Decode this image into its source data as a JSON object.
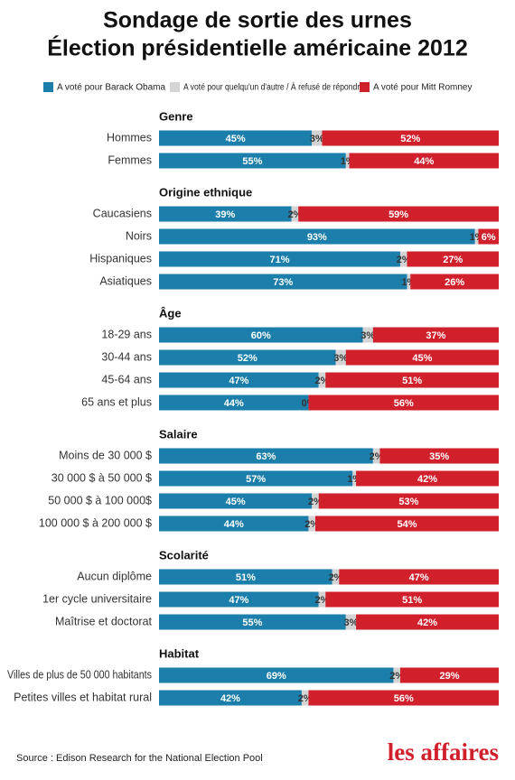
{
  "chart_data": {
    "type": "stacked-bar",
    "title": "Sondage de sortie des urnes",
    "subtitle": "Élection présidentielle américaine 2012",
    "series": [
      {
        "name": "A voté pour Barack Obama",
        "color": "#1b7eab"
      },
      {
        "name": "A voté pour quelqu'un d'autre / À refusé de répondre",
        "color": "#d4d4d4"
      },
      {
        "name": "A voté pour Mitt Romney",
        "color": "#d0202c"
      }
    ],
    "xlim": [
      0,
      100
    ],
    "groups": [
      {
        "name": "Genre",
        "categories": [
          "Hommes",
          "Femmes"
        ],
        "values": [
          [
            45,
            3,
            52
          ],
          [
            55,
            1,
            44
          ]
        ],
        "value_labels": [
          [
            "45%",
            "3%",
            "52%"
          ],
          [
            "55%",
            "1%",
            "44%"
          ]
        ]
      },
      {
        "name": "Origine ethnique",
        "categories": [
          "Caucasiens",
          "Noirs",
          "Hispaniques",
          "Asiatiques"
        ],
        "values": [
          [
            39,
            2,
            59
          ],
          [
            93,
            1,
            6
          ],
          [
            71,
            2,
            27
          ],
          [
            73,
            1,
            26
          ]
        ],
        "value_labels": [
          [
            "39%",
            "2%",
            "59%"
          ],
          [
            "93%",
            "1%",
            "6%"
          ],
          [
            "71%",
            "2%",
            "27%"
          ],
          [
            "73%",
            "1%",
            "26%"
          ]
        ]
      },
      {
        "name": "Âge",
        "categories": [
          "18-29 ans",
          "30-44 ans",
          "45-64 ans",
          "65 ans et plus"
        ],
        "values": [
          [
            60,
            3,
            37
          ],
          [
            52,
            3,
            45
          ],
          [
            47,
            2,
            51
          ],
          [
            44,
            0,
            56
          ]
        ],
        "value_labels": [
          [
            "60%",
            "3%",
            "37%"
          ],
          [
            "52%",
            "3%",
            "45%"
          ],
          [
            "47%",
            "2%",
            "51%"
          ],
          [
            "44%",
            "0%",
            "56%"
          ]
        ]
      },
      {
        "name": "Salaire",
        "categories": [
          "Moins de 30 000 $",
          "30 000 $ à 50 000 $",
          "50 000 $ à 100 000$",
          "100 000 $ à 200 000 $"
        ],
        "values": [
          [
            63,
            2,
            35
          ],
          [
            57,
            1,
            42
          ],
          [
            45,
            2,
            53
          ],
          [
            44,
            2,
            54
          ]
        ],
        "value_labels": [
          [
            "63%",
            "2%",
            "35%"
          ],
          [
            "57%",
            "1%",
            "42%"
          ],
          [
            "45%",
            "2%",
            "53%"
          ],
          [
            "44%",
            "2%",
            "54%"
          ]
        ]
      },
      {
        "name": "Scolarité",
        "categories": [
          "Aucun diplôme",
          "1er cycle universitaire",
          "Maîtrise et doctorat"
        ],
        "values": [
          [
            51,
            2,
            47
          ],
          [
            47,
            2,
            51
          ],
          [
            55,
            3,
            42
          ]
        ],
        "value_labels": [
          [
            "51%",
            "2%",
            "47%"
          ],
          [
            "47%",
            "2%",
            "51%"
          ],
          [
            "55%",
            "3%",
            "42%"
          ]
        ]
      },
      {
        "name": "Habitat",
        "categories": [
          "Villes de plus de 50 000 habitants",
          "Petites villes et habitat rural"
        ],
        "values": [
          [
            69,
            2,
            29
          ],
          [
            42,
            2,
            56
          ]
        ],
        "value_labels": [
          [
            "69%",
            "2%",
            "29%"
          ],
          [
            "42%",
            "2%",
            "56%"
          ]
        ]
      }
    ],
    "source": "Source : Edison Research for the National Election Pool",
    "brand": "les affaires"
  }
}
